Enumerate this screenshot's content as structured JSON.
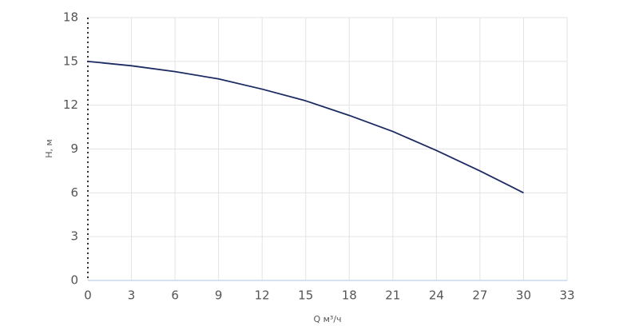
{
  "chart_data": {
    "type": "line",
    "x_label": "Q м³/ч",
    "y_label": "H, м",
    "x": [
      0,
      3,
      6,
      9,
      12,
      15,
      18,
      21,
      24,
      27,
      30
    ],
    "values": [
      15,
      14.7,
      14.3,
      13.8,
      13.1,
      12.3,
      11.3,
      10.2,
      8.9,
      7.5,
      6
    ],
    "color": "#1b2a63",
    "xlim": [
      0,
      33
    ],
    "xticks": [
      0,
      3,
      6,
      9,
      12,
      15,
      18,
      21,
      24,
      27,
      30,
      33
    ],
    "ylim": [
      0,
      18
    ],
    "yticks": [
      0,
      3,
      6,
      9,
      12,
      15,
      18
    ],
    "grid": true
  }
}
